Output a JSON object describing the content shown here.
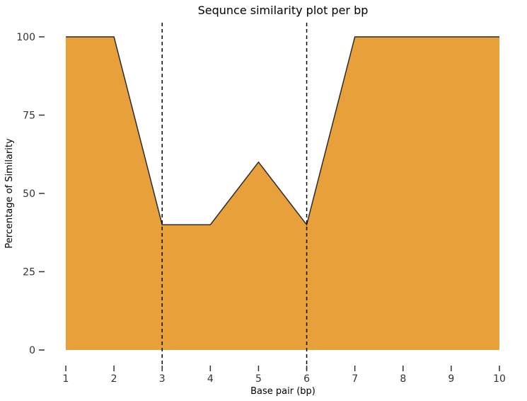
{
  "chart_data": {
    "type": "area",
    "title": "Sequnce similarity plot per bp",
    "xlabel": "Base pair (bp)",
    "ylabel": "Percentage of Similarity",
    "x": [
      1,
      2,
      3,
      4,
      5,
      6,
      7,
      8,
      9,
      10
    ],
    "series": [
      {
        "values": [
          100,
          100,
          40,
          40,
          60,
          40,
          100,
          100,
          100,
          100
        ]
      }
    ],
    "xlim": [
      1,
      10
    ],
    "ylim": [
      0,
      100
    ],
    "xticks": [
      1,
      2,
      3,
      4,
      5,
      6,
      7,
      8,
      9,
      10
    ],
    "yticks": [
      0,
      25,
      50,
      75,
      100
    ],
    "vlines": [
      3,
      6
    ],
    "grid": false,
    "legend": "none",
    "colors": {
      "fill": "#E8A13A",
      "line": "#2b2b2b",
      "vline": "#000000"
    }
  }
}
